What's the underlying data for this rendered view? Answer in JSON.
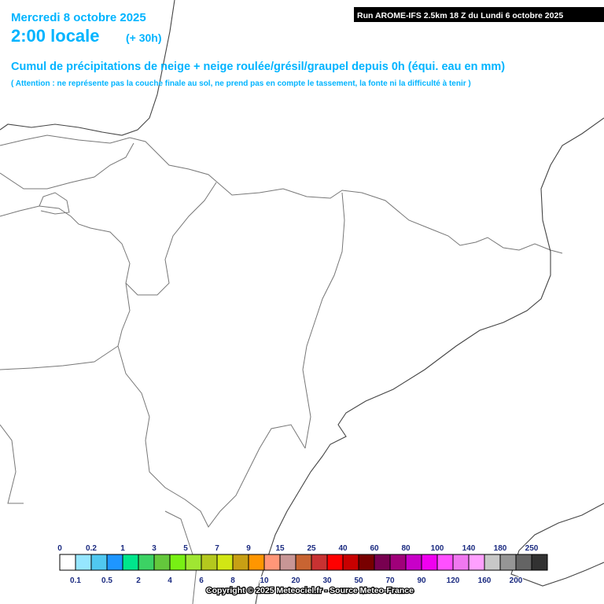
{
  "header": {
    "date": "Mercredi 8 octobre 2025",
    "time": "2:00 locale",
    "offset": "(+ 30h)",
    "run": "Run AROME-IFS 2.5km 18 Z du Lundi 6 octobre 2025",
    "title": "Cumul de précipitations de neige + neige roulée/grésil/graupel depuis 0h (équi. eau en mm)",
    "note": "( Attention : ne représente pas la couche finale au sol, ne prend pas en compte le tassement, la fonte ni la difficulté à tenir )"
  },
  "legend": {
    "colors": [
      "#ffffff",
      "#96e6ff",
      "#50c8f0",
      "#1e96ff",
      "#00e68c",
      "#3cd264",
      "#64c83c",
      "#78f014",
      "#a0e632",
      "#b4c81e",
      "#d2e614",
      "#c8a014",
      "#ff9600",
      "#ff9678",
      "#c89696",
      "#c86432",
      "#c83232",
      "#ff0000",
      "#c80000",
      "#780000",
      "#780050",
      "#a0007a",
      "#c800c8",
      "#f000f0",
      "#ff50ff",
      "#f078f0",
      "#ffa0ff",
      "#c8c8c8",
      "#969696",
      "#646464",
      "#323232"
    ],
    "upper_labels": [
      "0",
      "0.2",
      "1",
      "3",
      "5",
      "7",
      "9",
      "15",
      "25",
      "40",
      "60",
      "80",
      "100",
      "140",
      "180",
      "250"
    ],
    "lower_labels": [
      "0.1",
      "0.5",
      "2",
      "4",
      "6",
      "8",
      "10",
      "20",
      "30",
      "50",
      "70",
      "90",
      "120",
      "160",
      "200"
    ]
  },
  "footer": {
    "copyright": "Copyright © 2025 Meteociel.fr - Source Meteo-France"
  }
}
